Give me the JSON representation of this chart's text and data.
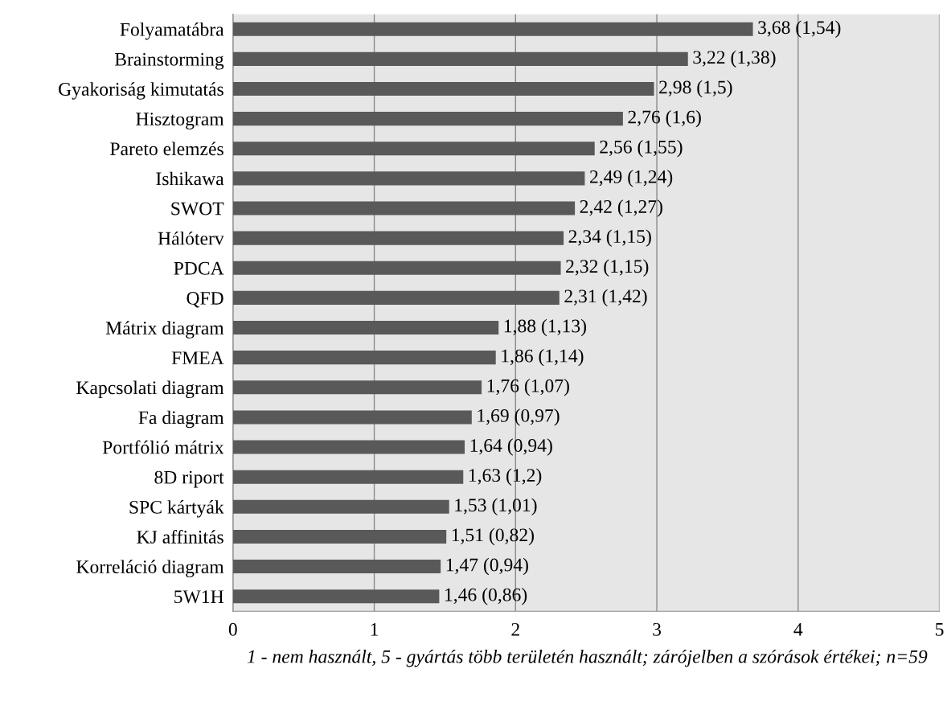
{
  "chart_data": {
    "type": "bar",
    "orientation": "horizontal",
    "categories": [
      "Folyamatábra",
      "Brainstorming",
      "Gyakoriság kimutatás",
      "Hisztogram",
      "Pareto elemzés",
      "Ishikawa",
      "SWOT",
      "Hálóterv",
      "PDCA",
      "QFD",
      "Mátrix diagram",
      "FMEA",
      "Kapcsolati diagram",
      "Fa diagram",
      "Portfólió mátrix",
      "8D riport",
      "SPC kártyák",
      "KJ affinitás",
      "Korreláció diagram",
      "5W1H"
    ],
    "values": [
      3.68,
      3.22,
      2.98,
      2.76,
      2.56,
      2.49,
      2.42,
      2.34,
      2.32,
      2.31,
      1.88,
      1.86,
      1.76,
      1.69,
      1.64,
      1.63,
      1.53,
      1.51,
      1.47,
      1.46
    ],
    "value_labels": [
      "3,68 (1,54)",
      "3,22 (1,38)",
      "2,98 (1,5)",
      "2,76 (1,6)",
      "2,56 (1,55)",
      "2,49 (1,24)",
      "2,42 (1,27)",
      "2,34 (1,15)",
      "2,32 (1,15)",
      "2,31 (1,42)",
      "1,88 (1,13)",
      "1,86 (1,14)",
      "1,76 (1,07)",
      "1,69 (0,97)",
      "1,64 (0,94)",
      "1,63 (1,2)",
      "1,53 (1,01)",
      "1,51 (0,82)",
      "1,47 (0,94)",
      "1,46 (0,86)"
    ],
    "color": "#595959",
    "xlim": [
      0,
      5
    ],
    "xticks": [
      0,
      1,
      2,
      3,
      4,
      5
    ],
    "grid": "x",
    "xlabel": "1 - nem használt, 5 - gyártás több területén használt; zárójelben a szórások értékei; n=59"
  }
}
